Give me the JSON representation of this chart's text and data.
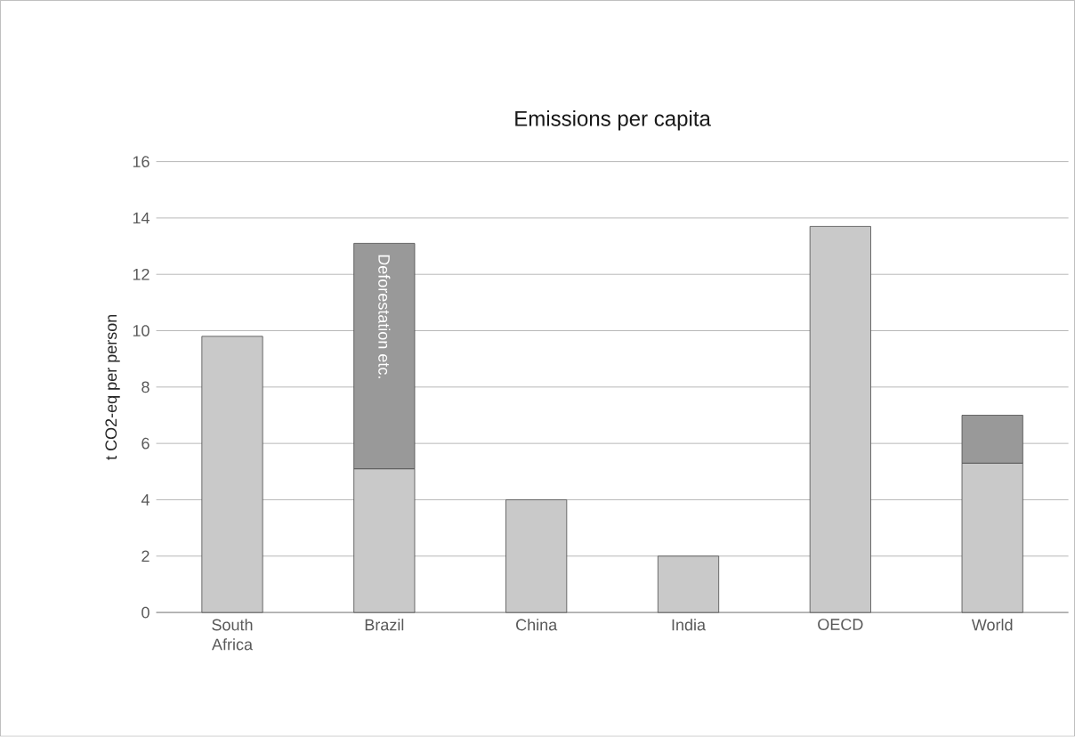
{
  "chart_data": {
    "type": "bar",
    "title": "Emissions per capita",
    "ylabel": "t CO2-eq per person",
    "categories": [
      "South Africa",
      "Brazil",
      "China",
      "India",
      "OECD",
      "World"
    ],
    "series": [
      {
        "color": "#c9c9c9",
        "values": [
          9.8,
          5.1,
          4.0,
          2.0,
          13.7,
          5.3
        ]
      },
      {
        "color": "#999999",
        "values": [
          null,
          8.0,
          null,
          null,
          null,
          1.7
        ]
      }
    ],
    "stacked": true,
    "ylim": [
      0,
      16
    ],
    "yticks": [
      0,
      2,
      4,
      6,
      8,
      10,
      12,
      14,
      16
    ],
    "grid": "y",
    "annotations": [
      "Deforestation etc."
    ]
  }
}
